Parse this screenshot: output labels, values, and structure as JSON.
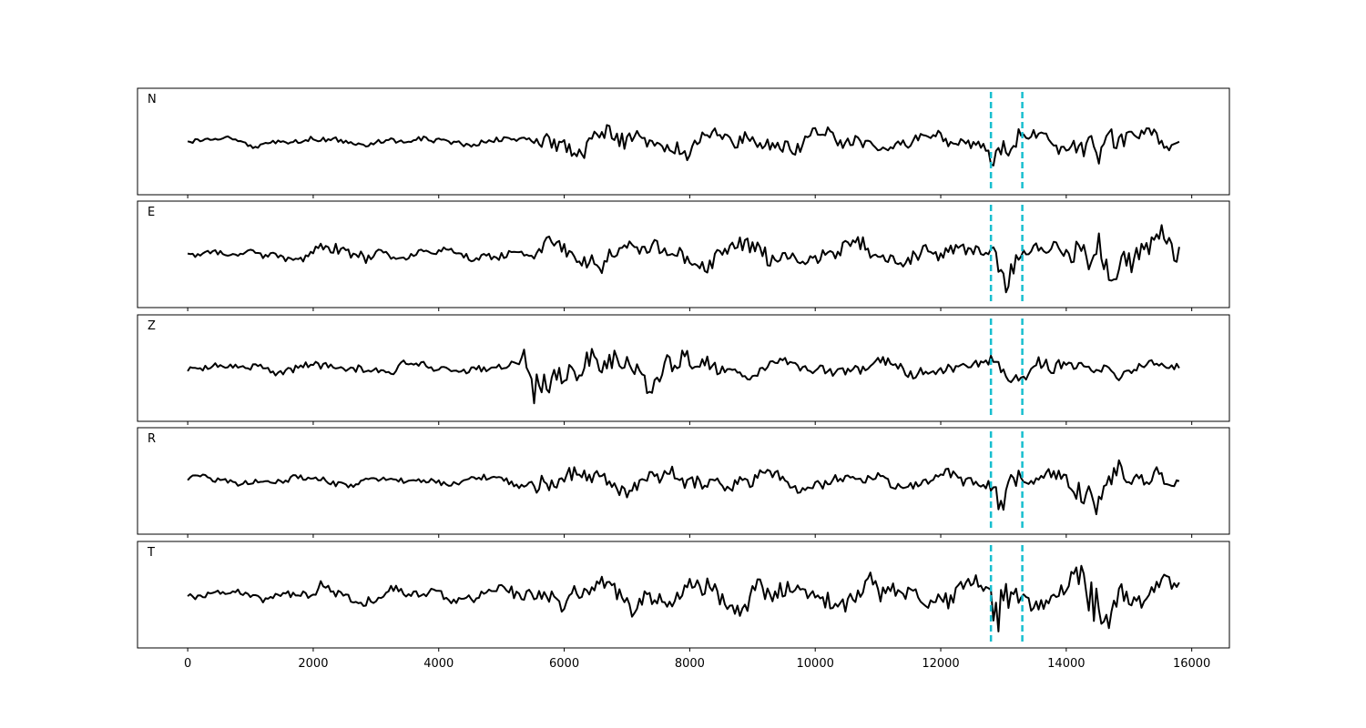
{
  "chart_data": {
    "type": "line",
    "x_range": [
      -800,
      16600
    ],
    "x_ticks": [
      0,
      2000,
      4000,
      6000,
      8000,
      10000,
      12000,
      14000,
      16000
    ],
    "x_tick_labels": [
      "0",
      "2000",
      "4000",
      "6000",
      "8000",
      "10000",
      "12000",
      "14000",
      "16000"
    ],
    "grid": false,
    "trace_color": "#000000",
    "marker_color": "#17becf",
    "markers": [
      12800,
      13300
    ],
    "n_samples": 15800,
    "panels": [
      {
        "label": "N",
        "seed": 11,
        "ylim": [
          -1,
          1
        ],
        "envelope": [
          [
            0,
            0.1
          ],
          [
            5500,
            0.12
          ],
          [
            5560,
            0.38
          ],
          [
            5800,
            0.32
          ],
          [
            7000,
            0.36
          ],
          [
            9000,
            0.3
          ],
          [
            11000,
            0.22
          ],
          [
            12700,
            0.22
          ],
          [
            12780,
            0.55
          ],
          [
            12900,
            0.95
          ],
          [
            13200,
            0.6
          ],
          [
            13350,
            0.22
          ],
          [
            14000,
            0.3
          ],
          [
            14350,
            0.6
          ],
          [
            14700,
            0.65
          ],
          [
            15000,
            0.3
          ],
          [
            15500,
            0.35
          ],
          [
            15800,
            0.05
          ]
        ]
      },
      {
        "label": "E",
        "seed": 23,
        "ylim": [
          -1,
          1
        ],
        "envelope": [
          [
            0,
            0.1
          ],
          [
            1800,
            0.15
          ],
          [
            2400,
            0.24
          ],
          [
            4000,
            0.13
          ],
          [
            5500,
            0.15
          ],
          [
            5600,
            0.35
          ],
          [
            7000,
            0.32
          ],
          [
            9000,
            0.33
          ],
          [
            11000,
            0.3
          ],
          [
            12700,
            0.28
          ],
          [
            12780,
            0.5
          ],
          [
            12900,
            0.85
          ],
          [
            13200,
            0.5
          ],
          [
            13350,
            0.25
          ],
          [
            14000,
            0.35
          ],
          [
            14450,
            0.9
          ],
          [
            14700,
            0.55
          ],
          [
            15300,
            0.4
          ],
          [
            15800,
            0.55
          ]
        ]
      },
      {
        "label": "Z",
        "seed": 37,
        "ylim": [
          -1,
          1
        ],
        "envelope": [
          [
            0,
            0.1
          ],
          [
            300,
            0.2
          ],
          [
            700,
            0.12
          ],
          [
            1500,
            0.15
          ],
          [
            5300,
            0.15
          ],
          [
            5550,
            1.0
          ],
          [
            5700,
            0.85
          ],
          [
            6000,
            0.5
          ],
          [
            7000,
            0.4
          ],
          [
            8200,
            0.45
          ],
          [
            8400,
            0.25
          ],
          [
            10000,
            0.2
          ],
          [
            12500,
            0.2
          ],
          [
            12800,
            0.25
          ],
          [
            13300,
            0.3
          ],
          [
            15800,
            0.15
          ]
        ]
      },
      {
        "label": "R",
        "seed": 41,
        "ylim": [
          -1,
          1
        ],
        "envelope": [
          [
            0,
            0.12
          ],
          [
            5500,
            0.12
          ],
          [
            5560,
            0.45
          ],
          [
            5800,
            0.4
          ],
          [
            7000,
            0.32
          ],
          [
            9000,
            0.25
          ],
          [
            11000,
            0.18
          ],
          [
            12700,
            0.18
          ],
          [
            12780,
            0.5
          ],
          [
            12900,
            0.9
          ],
          [
            13200,
            0.6
          ],
          [
            13350,
            0.15
          ],
          [
            14000,
            0.25
          ],
          [
            14300,
            0.6
          ],
          [
            14600,
            0.7
          ],
          [
            15000,
            0.3
          ],
          [
            15500,
            0.35
          ],
          [
            15800,
            0.1
          ]
        ]
      },
      {
        "label": "T",
        "seed": 53,
        "ylim": [
          -1,
          1
        ],
        "envelope": [
          [
            0,
            0.12
          ],
          [
            1800,
            0.15
          ],
          [
            2100,
            0.3
          ],
          [
            2400,
            0.22
          ],
          [
            4500,
            0.18
          ],
          [
            5500,
            0.28
          ],
          [
            6000,
            0.38
          ],
          [
            8000,
            0.4
          ],
          [
            10000,
            0.4
          ],
          [
            12000,
            0.35
          ],
          [
            12700,
            0.4
          ],
          [
            12800,
            0.55
          ],
          [
            12900,
            0.95
          ],
          [
            13200,
            0.75
          ],
          [
            13350,
            0.4
          ],
          [
            14200,
            0.5
          ],
          [
            14450,
            1.0
          ],
          [
            14700,
            0.6
          ],
          [
            15500,
            0.45
          ],
          [
            15700,
            0.4
          ],
          [
            15800,
            0.55
          ]
        ]
      }
    ]
  }
}
